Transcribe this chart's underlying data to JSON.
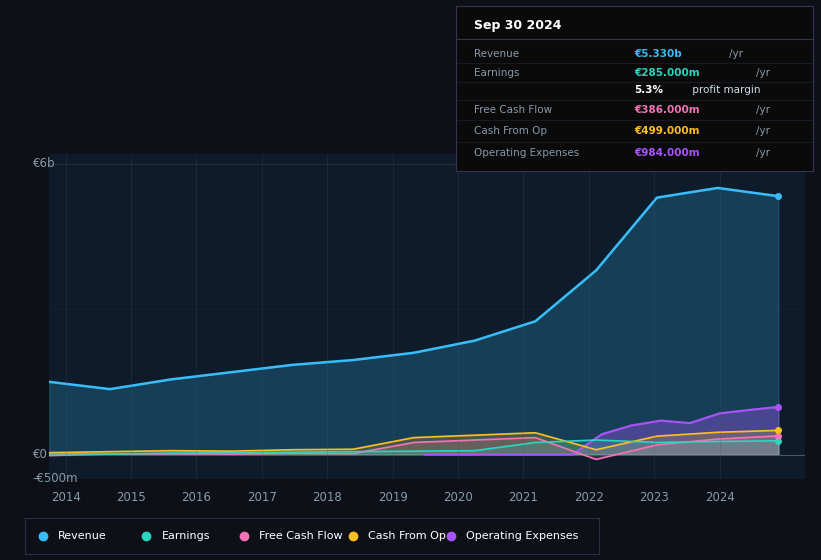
{
  "bg_color": "#0d1117",
  "plot_bg_color": "#0d1b2a",
  "title_box": {
    "date": "Sep 30 2024",
    "rows": [
      {
        "label": "Revenue",
        "value": "€5.330b",
        "unit": "/yr",
        "value_color": "#38bdf8"
      },
      {
        "label": "Earnings",
        "value": "€285.000m",
        "unit": "/yr",
        "value_color": "#2dd4bf"
      },
      {
        "label": "",
        "value": "5.3%",
        "unit": " profit margin",
        "value_color": "#ffffff"
      },
      {
        "label": "Free Cash Flow",
        "value": "€386.000m",
        "unit": "/yr",
        "value_color": "#f472b6"
      },
      {
        "label": "Cash From Op",
        "value": "€499.000m",
        "unit": "/yr",
        "value_color": "#fbbf24"
      },
      {
        "label": "Operating Expenses",
        "value": "€984.000m",
        "unit": "/yr",
        "value_color": "#a855f7"
      }
    ]
  },
  "ylabel_top": "€6b",
  "ylabel_zero": "€0",
  "ylabel_neg": "-€500m",
  "x_labels": [
    "2014",
    "2015",
    "2016",
    "2017",
    "2018",
    "2019",
    "2020",
    "2021",
    "2022",
    "2023",
    "2024"
  ],
  "series": {
    "revenue": {
      "color": "#38bdf8",
      "label": "Revenue",
      "values": [
        1.5,
        1.35,
        1.55,
        1.7,
        1.85,
        1.95,
        2.1,
        2.35,
        2.75,
        3.8,
        5.3,
        5.5,
        5.33
      ]
    },
    "earnings": {
      "color": "#2dd4bf",
      "label": "Earnings",
      "values": [
        0.02,
        0.01,
        0.03,
        0.04,
        0.05,
        0.06,
        0.07,
        0.08,
        0.25,
        0.3,
        0.25,
        0.27,
        0.285
      ]
    },
    "free_cash_flow": {
      "color": "#f472b6",
      "label": "Free Cash Flow",
      "values": [
        -0.02,
        0.01,
        0.02,
        0.01,
        0.03,
        0.02,
        0.25,
        0.3,
        0.35,
        -0.1,
        0.2,
        0.32,
        0.386
      ]
    },
    "cash_from_op": {
      "color": "#fbbf24",
      "label": "Cash From Op",
      "values": [
        0.04,
        0.06,
        0.08,
        0.07,
        0.1,
        0.11,
        0.35,
        0.4,
        0.45,
        0.1,
        0.38,
        0.46,
        0.499
      ]
    },
    "operating_expenses": {
      "color": "#a855f7",
      "label": "Operating Expenses",
      "values": [
        0.0,
        0.0,
        0.0,
        0.0,
        0.0,
        0.0,
        0.42,
        0.6,
        0.7,
        0.65,
        0.85,
        0.92,
        0.984
      ]
    }
  },
  "legend_items": [
    {
      "label": "Revenue",
      "color": "#38bdf8"
    },
    {
      "label": "Earnings",
      "color": "#2dd4bf"
    },
    {
      "label": "Free Cash Flow",
      "color": "#f472b6"
    },
    {
      "label": "Cash From Op",
      "color": "#fbbf24"
    },
    {
      "label": "Operating Expenses",
      "color": "#a855f7"
    }
  ],
  "xmin": 2013.75,
  "xmax": 2025.3,
  "ymin": -0.5,
  "ymax": 6.2
}
